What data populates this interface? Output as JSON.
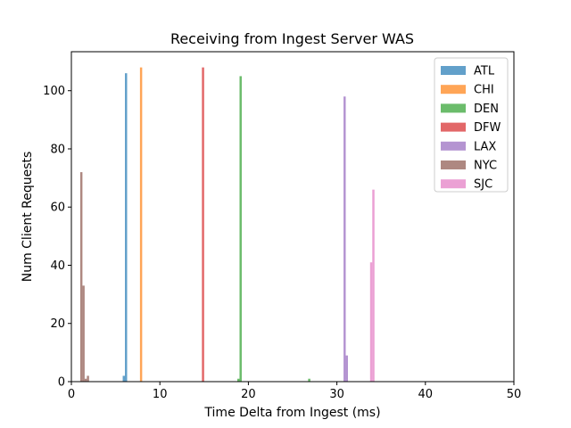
{
  "chart_data": {
    "type": "bar",
    "title": "Receiving from Ingest Server WAS",
    "xlabel": "Time Delta from Ingest (ms)",
    "ylabel": "Num Client Requests",
    "xlim": [
      0,
      50
    ],
    "ylim": [
      0,
      113.4
    ],
    "xticks": [
      "0",
      "10",
      "20",
      "30",
      "40",
      "50"
    ],
    "yticks": [
      "0",
      "20",
      "40",
      "60",
      "80",
      "100"
    ],
    "grid": false,
    "legend_position": "top-right",
    "bar_width": 0.25,
    "series": [
      {
        "name": "ATL",
        "color": "#1f77b4",
        "bars": [
          {
            "x": 5.8,
            "value": 2
          },
          {
            "x": 6.05,
            "value": 106
          }
        ]
      },
      {
        "name": "CHI",
        "color": "#ff7f0e",
        "bars": [
          {
            "x": 7.75,
            "value": 108
          }
        ]
      },
      {
        "name": "DEN",
        "color": "#2ca02c",
        "bars": [
          {
            "x": 18.75,
            "value": 1
          },
          {
            "x": 19.0,
            "value": 105
          },
          {
            "x": 26.75,
            "value": 1
          }
        ]
      },
      {
        "name": "DFW",
        "color": "#d62728",
        "bars": [
          {
            "x": 14.75,
            "value": 108
          }
        ]
      },
      {
        "name": "LAX",
        "color": "#9467bd",
        "bars": [
          {
            "x": 30.75,
            "value": 98
          },
          {
            "x": 31.0,
            "value": 9
          }
        ]
      },
      {
        "name": "NYC",
        "color": "#8c564b",
        "bars": [
          {
            "x": 1.0,
            "value": 72
          },
          {
            "x": 1.25,
            "value": 33
          },
          {
            "x": 1.5,
            "value": 1
          },
          {
            "x": 1.75,
            "value": 2
          }
        ]
      },
      {
        "name": "SJC",
        "color": "#e377c2",
        "bars": [
          {
            "x": 33.75,
            "value": 41
          },
          {
            "x": 34.0,
            "value": 66
          }
        ]
      }
    ]
  }
}
